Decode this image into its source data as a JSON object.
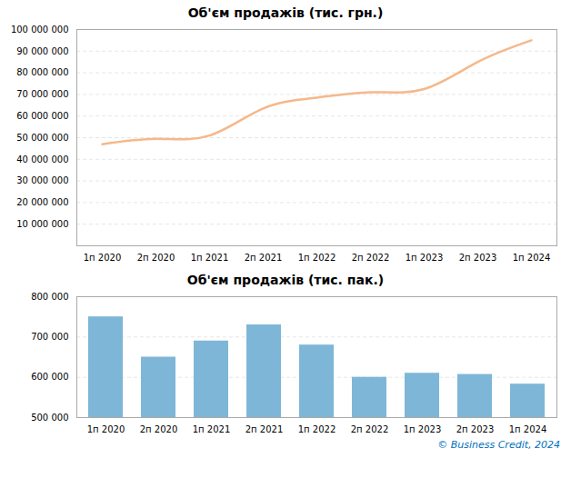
{
  "chart_data": [
    {
      "type": "line",
      "title": "Об'єм продажів (тис. грн.)",
      "categories": [
        "1п 2020",
        "2п 2020",
        "1п 2021",
        "2п 2021",
        "1п 2022",
        "2п 2022",
        "1п 2023",
        "2п 2023",
        "1п 2024"
      ],
      "values": [
        47000000,
        49500000,
        51000000,
        63500000,
        68500000,
        71000000,
        72500000,
        85000000,
        95000000
      ],
      "color": "#F5B88A",
      "ylim": [
        0,
        100000000
      ],
      "yticks": [
        {
          "value": 10000000,
          "label": "10 000 000"
        },
        {
          "value": 20000000,
          "label": "20 000 000"
        },
        {
          "value": 30000000,
          "label": "30 000 000"
        },
        {
          "value": 40000000,
          "label": "40 000 000"
        },
        {
          "value": 50000000,
          "label": "50 000 000"
        },
        {
          "value": 60000000,
          "label": "60 000 000"
        },
        {
          "value": 70000000,
          "label": "70 000 000"
        },
        {
          "value": 80000000,
          "label": "80 000 000"
        },
        {
          "value": 90000000,
          "label": "90 000 000"
        },
        {
          "value": 100000000,
          "label": "100 000 000"
        }
      ],
      "grid": true
    },
    {
      "type": "bar",
      "title": "Об'єм продажів (тис. пак.)",
      "categories": [
        "1п 2020",
        "2п 2020",
        "1п 2021",
        "2п 2021",
        "1п 2022",
        "2п 2022",
        "1п 2023",
        "2п 2023",
        "1п 2024"
      ],
      "values": [
        750000,
        650000,
        690000,
        730000,
        680000,
        600000,
        610000,
        607000,
        583000
      ],
      "color": "#7EB6D8",
      "ylim": [
        500000,
        800000
      ],
      "yticks": [
        {
          "value": 500000,
          "label": "500 000"
        },
        {
          "value": 600000,
          "label": "600 000"
        },
        {
          "value": 700000,
          "label": "700 000"
        },
        {
          "value": 800000,
          "label": "800 000"
        }
      ],
      "grid": true,
      "annotations": [
        "© Business Credit, 2024"
      ]
    }
  ]
}
